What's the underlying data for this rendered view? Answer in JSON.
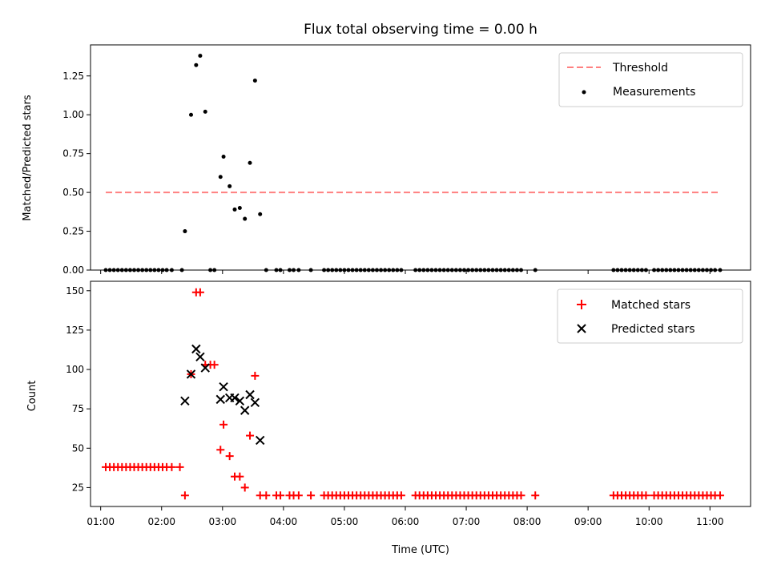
{
  "title": "Flux total observing time = 0.00 h",
  "chart_data": [
    {
      "type": "scatter",
      "ylabel": "Matched/Predicted stars",
      "xlabel": "",
      "xlim": [
        "00:50",
        "11:40"
      ],
      "ylim": [
        0,
        1.45
      ],
      "yticks": [
        "0.00",
        "0.25",
        "0.50",
        "0.75",
        "1.00",
        "1.25"
      ],
      "legend_position": "top-right",
      "threshold": {
        "name": "Threshold",
        "value": 0.5,
        "x_range": [
          "01:05",
          "11:10"
        ],
        "color": "#ff8080"
      },
      "series": [
        {
          "name": "Measurements",
          "color": "#000000",
          "points": [
            [
              "01:05",
              0
            ],
            [
              "01:09",
              0
            ],
            [
              "01:13",
              0
            ],
            [
              "01:17",
              0
            ],
            [
              "01:21",
              0
            ],
            [
              "01:25",
              0
            ],
            [
              "01:29",
              0
            ],
            [
              "01:33",
              0
            ],
            [
              "01:37",
              0
            ],
            [
              "01:41",
              0
            ],
            [
              "01:45",
              0
            ],
            [
              "01:49",
              0
            ],
            [
              "01:53",
              0
            ],
            [
              "01:57",
              0
            ],
            [
              "02:01",
              0
            ],
            [
              "02:05",
              0
            ],
            [
              "02:10",
              0
            ],
            [
              "02:20",
              0
            ],
            [
              "02:23",
              0.25
            ],
            [
              "02:29",
              1.0
            ],
            [
              "02:34",
              1.32
            ],
            [
              "02:38",
              1.38
            ],
            [
              "02:43",
              1.02
            ],
            [
              "02:48",
              0
            ],
            [
              "02:52",
              0
            ],
            [
              "02:58",
              0.6
            ],
            [
              "03:01",
              0.73
            ],
            [
              "03:07",
              0.54
            ],
            [
              "03:12",
              0.39
            ],
            [
              "03:17",
              0.4
            ],
            [
              "03:22",
              0.33
            ],
            [
              "03:27",
              0.69
            ],
            [
              "03:32",
              1.22
            ],
            [
              "03:37",
              0.36
            ],
            [
              "03:43",
              0
            ],
            [
              "03:53",
              0
            ],
            [
              "03:57",
              0
            ],
            [
              "04:06",
              0
            ],
            [
              "04:10",
              0
            ],
            [
              "04:15",
              0
            ],
            [
              "04:27",
              0
            ],
            [
              "04:40",
              0
            ],
            [
              "04:44",
              0
            ],
            [
              "04:48",
              0
            ],
            [
              "04:52",
              0
            ],
            [
              "04:56",
              0
            ],
            [
              "05:00",
              0
            ],
            [
              "05:04",
              0
            ],
            [
              "05:08",
              0
            ],
            [
              "05:12",
              0
            ],
            [
              "05:16",
              0
            ],
            [
              "05:20",
              0
            ],
            [
              "05:24",
              0
            ],
            [
              "05:28",
              0
            ],
            [
              "05:32",
              0
            ],
            [
              "05:36",
              0
            ],
            [
              "05:40",
              0
            ],
            [
              "05:44",
              0
            ],
            [
              "05:48",
              0
            ],
            [
              "05:52",
              0
            ],
            [
              "05:56",
              0
            ],
            [
              "06:10",
              0
            ],
            [
              "06:14",
              0
            ],
            [
              "06:18",
              0
            ],
            [
              "06:22",
              0
            ],
            [
              "06:26",
              0
            ],
            [
              "06:30",
              0
            ],
            [
              "06:34",
              0
            ],
            [
              "06:38",
              0
            ],
            [
              "06:42",
              0
            ],
            [
              "06:46",
              0
            ],
            [
              "06:50",
              0
            ],
            [
              "06:54",
              0
            ],
            [
              "06:58",
              0
            ],
            [
              "07:02",
              0
            ],
            [
              "07:06",
              0
            ],
            [
              "07:10",
              0
            ],
            [
              "07:14",
              0
            ],
            [
              "07:18",
              0
            ],
            [
              "07:22",
              0
            ],
            [
              "07:26",
              0
            ],
            [
              "07:30",
              0
            ],
            [
              "07:34",
              0
            ],
            [
              "07:38",
              0
            ],
            [
              "07:42",
              0
            ],
            [
              "07:46",
              0
            ],
            [
              "07:50",
              0
            ],
            [
              "07:54",
              0
            ],
            [
              "08:08",
              0
            ],
            [
              "09:25",
              0
            ],
            [
              "09:29",
              0
            ],
            [
              "09:33",
              0
            ],
            [
              "09:37",
              0
            ],
            [
              "09:41",
              0
            ],
            [
              "09:45",
              0
            ],
            [
              "09:49",
              0
            ],
            [
              "09:53",
              0
            ],
            [
              "09:57",
              0
            ],
            [
              "10:05",
              0
            ],
            [
              "10:09",
              0
            ],
            [
              "10:13",
              0
            ],
            [
              "10:17",
              0
            ],
            [
              "10:21",
              0
            ],
            [
              "10:25",
              0
            ],
            [
              "10:29",
              0
            ],
            [
              "10:33",
              0
            ],
            [
              "10:37",
              0
            ],
            [
              "10:41",
              0
            ],
            [
              "10:45",
              0
            ],
            [
              "10:49",
              0
            ],
            [
              "10:53",
              0
            ],
            [
              "10:57",
              0
            ],
            [
              "11:01",
              0
            ],
            [
              "11:05",
              0
            ],
            [
              "11:10",
              0
            ]
          ]
        }
      ]
    },
    {
      "type": "scatter",
      "ylabel": "Count",
      "xlabel": "Time (UTC)",
      "xlim": [
        "00:50",
        "11:40"
      ],
      "ylim": [
        13,
        156
      ],
      "yticks": [
        "25",
        "50",
        "75",
        "100",
        "125",
        "150"
      ],
      "xticks": [
        "01:00",
        "02:00",
        "03:00",
        "04:00",
        "05:00",
        "06:00",
        "07:00",
        "08:00",
        "09:00",
        "10:00",
        "11:00"
      ],
      "legend_position": "top-right",
      "series": [
        {
          "name": "Matched stars",
          "color": "#ff0000",
          "marker": "plus",
          "points": [
            [
              "01:05",
              38
            ],
            [
              "01:09",
              38
            ],
            [
              "01:13",
              38
            ],
            [
              "01:17",
              38
            ],
            [
              "01:21",
              38
            ],
            [
              "01:25",
              38
            ],
            [
              "01:29",
              38
            ],
            [
              "01:33",
              38
            ],
            [
              "01:37",
              38
            ],
            [
              "01:41",
              38
            ],
            [
              "01:45",
              38
            ],
            [
              "01:49",
              38
            ],
            [
              "01:53",
              38
            ],
            [
              "01:57",
              38
            ],
            [
              "02:01",
              38
            ],
            [
              "02:05",
              38
            ],
            [
              "02:10",
              38
            ],
            [
              "02:18",
              38
            ],
            [
              "02:23",
              20
            ],
            [
              "02:29",
              97
            ],
            [
              "02:34",
              149
            ],
            [
              "02:38",
              149
            ],
            [
              "02:43",
              103
            ],
            [
              "02:48",
              103
            ],
            [
              "02:52",
              103
            ],
            [
              "02:58",
              49
            ],
            [
              "03:01",
              65
            ],
            [
              "03:07",
              45
            ],
            [
              "03:12",
              32
            ],
            [
              "03:17",
              32
            ],
            [
              "03:22",
              25
            ],
            [
              "03:27",
              58
            ],
            [
              "03:32",
              96
            ],
            [
              "03:37",
              20
            ],
            [
              "03:43",
              20
            ],
            [
              "03:53",
              20
            ],
            [
              "03:57",
              20
            ],
            [
              "04:06",
              20
            ],
            [
              "04:10",
              20
            ],
            [
              "04:15",
              20
            ],
            [
              "04:27",
              20
            ],
            [
              "04:40",
              20
            ],
            [
              "04:44",
              20
            ],
            [
              "04:48",
              20
            ],
            [
              "04:52",
              20
            ],
            [
              "04:56",
              20
            ],
            [
              "05:00",
              20
            ],
            [
              "05:04",
              20
            ],
            [
              "05:08",
              20
            ],
            [
              "05:12",
              20
            ],
            [
              "05:16",
              20
            ],
            [
              "05:20",
              20
            ],
            [
              "05:24",
              20
            ],
            [
              "05:28",
              20
            ],
            [
              "05:32",
              20
            ],
            [
              "05:36",
              20
            ],
            [
              "05:40",
              20
            ],
            [
              "05:44",
              20
            ],
            [
              "05:48",
              20
            ],
            [
              "05:52",
              20
            ],
            [
              "05:56",
              20
            ],
            [
              "06:10",
              20
            ],
            [
              "06:14",
              20
            ],
            [
              "06:18",
              20
            ],
            [
              "06:22",
              20
            ],
            [
              "06:26",
              20
            ],
            [
              "06:30",
              20
            ],
            [
              "06:34",
              20
            ],
            [
              "06:38",
              20
            ],
            [
              "06:42",
              20
            ],
            [
              "06:46",
              20
            ],
            [
              "06:50",
              20
            ],
            [
              "06:54",
              20
            ],
            [
              "06:58",
              20
            ],
            [
              "07:02",
              20
            ],
            [
              "07:06",
              20
            ],
            [
              "07:10",
              20
            ],
            [
              "07:14",
              20
            ],
            [
              "07:18",
              20
            ],
            [
              "07:22",
              20
            ],
            [
              "07:26",
              20
            ],
            [
              "07:30",
              20
            ],
            [
              "07:34",
              20
            ],
            [
              "07:38",
              20
            ],
            [
              "07:42",
              20
            ],
            [
              "07:46",
              20
            ],
            [
              "07:50",
              20
            ],
            [
              "07:54",
              20
            ],
            [
              "08:08",
              20
            ],
            [
              "09:25",
              20
            ],
            [
              "09:29",
              20
            ],
            [
              "09:33",
              20
            ],
            [
              "09:37",
              20
            ],
            [
              "09:41",
              20
            ],
            [
              "09:45",
              20
            ],
            [
              "09:49",
              20
            ],
            [
              "09:53",
              20
            ],
            [
              "09:57",
              20
            ],
            [
              "10:05",
              20
            ],
            [
              "10:09",
              20
            ],
            [
              "10:13",
              20
            ],
            [
              "10:17",
              20
            ],
            [
              "10:21",
              20
            ],
            [
              "10:25",
              20
            ],
            [
              "10:29",
              20
            ],
            [
              "10:33",
              20
            ],
            [
              "10:37",
              20
            ],
            [
              "10:41",
              20
            ],
            [
              "10:45",
              20
            ],
            [
              "10:49",
              20
            ],
            [
              "10:53",
              20
            ],
            [
              "10:57",
              20
            ],
            [
              "11:01",
              20
            ],
            [
              "11:05",
              20
            ],
            [
              "11:10",
              20
            ]
          ]
        },
        {
          "name": "Predicted stars",
          "color": "#000000",
          "marker": "x",
          "points": [
            [
              "02:23",
              80
            ],
            [
              "02:29",
              97
            ],
            [
              "02:34",
              113
            ],
            [
              "02:38",
              108
            ],
            [
              "02:43",
              101
            ],
            [
              "02:58",
              81
            ],
            [
              "03:01",
              89
            ],
            [
              "03:07",
              82
            ],
            [
              "03:12",
              82
            ],
            [
              "03:17",
              80
            ],
            [
              "03:22",
              74
            ],
            [
              "03:27",
              84
            ],
            [
              "03:32",
              79
            ],
            [
              "03:37",
              55
            ]
          ]
        }
      ]
    }
  ]
}
